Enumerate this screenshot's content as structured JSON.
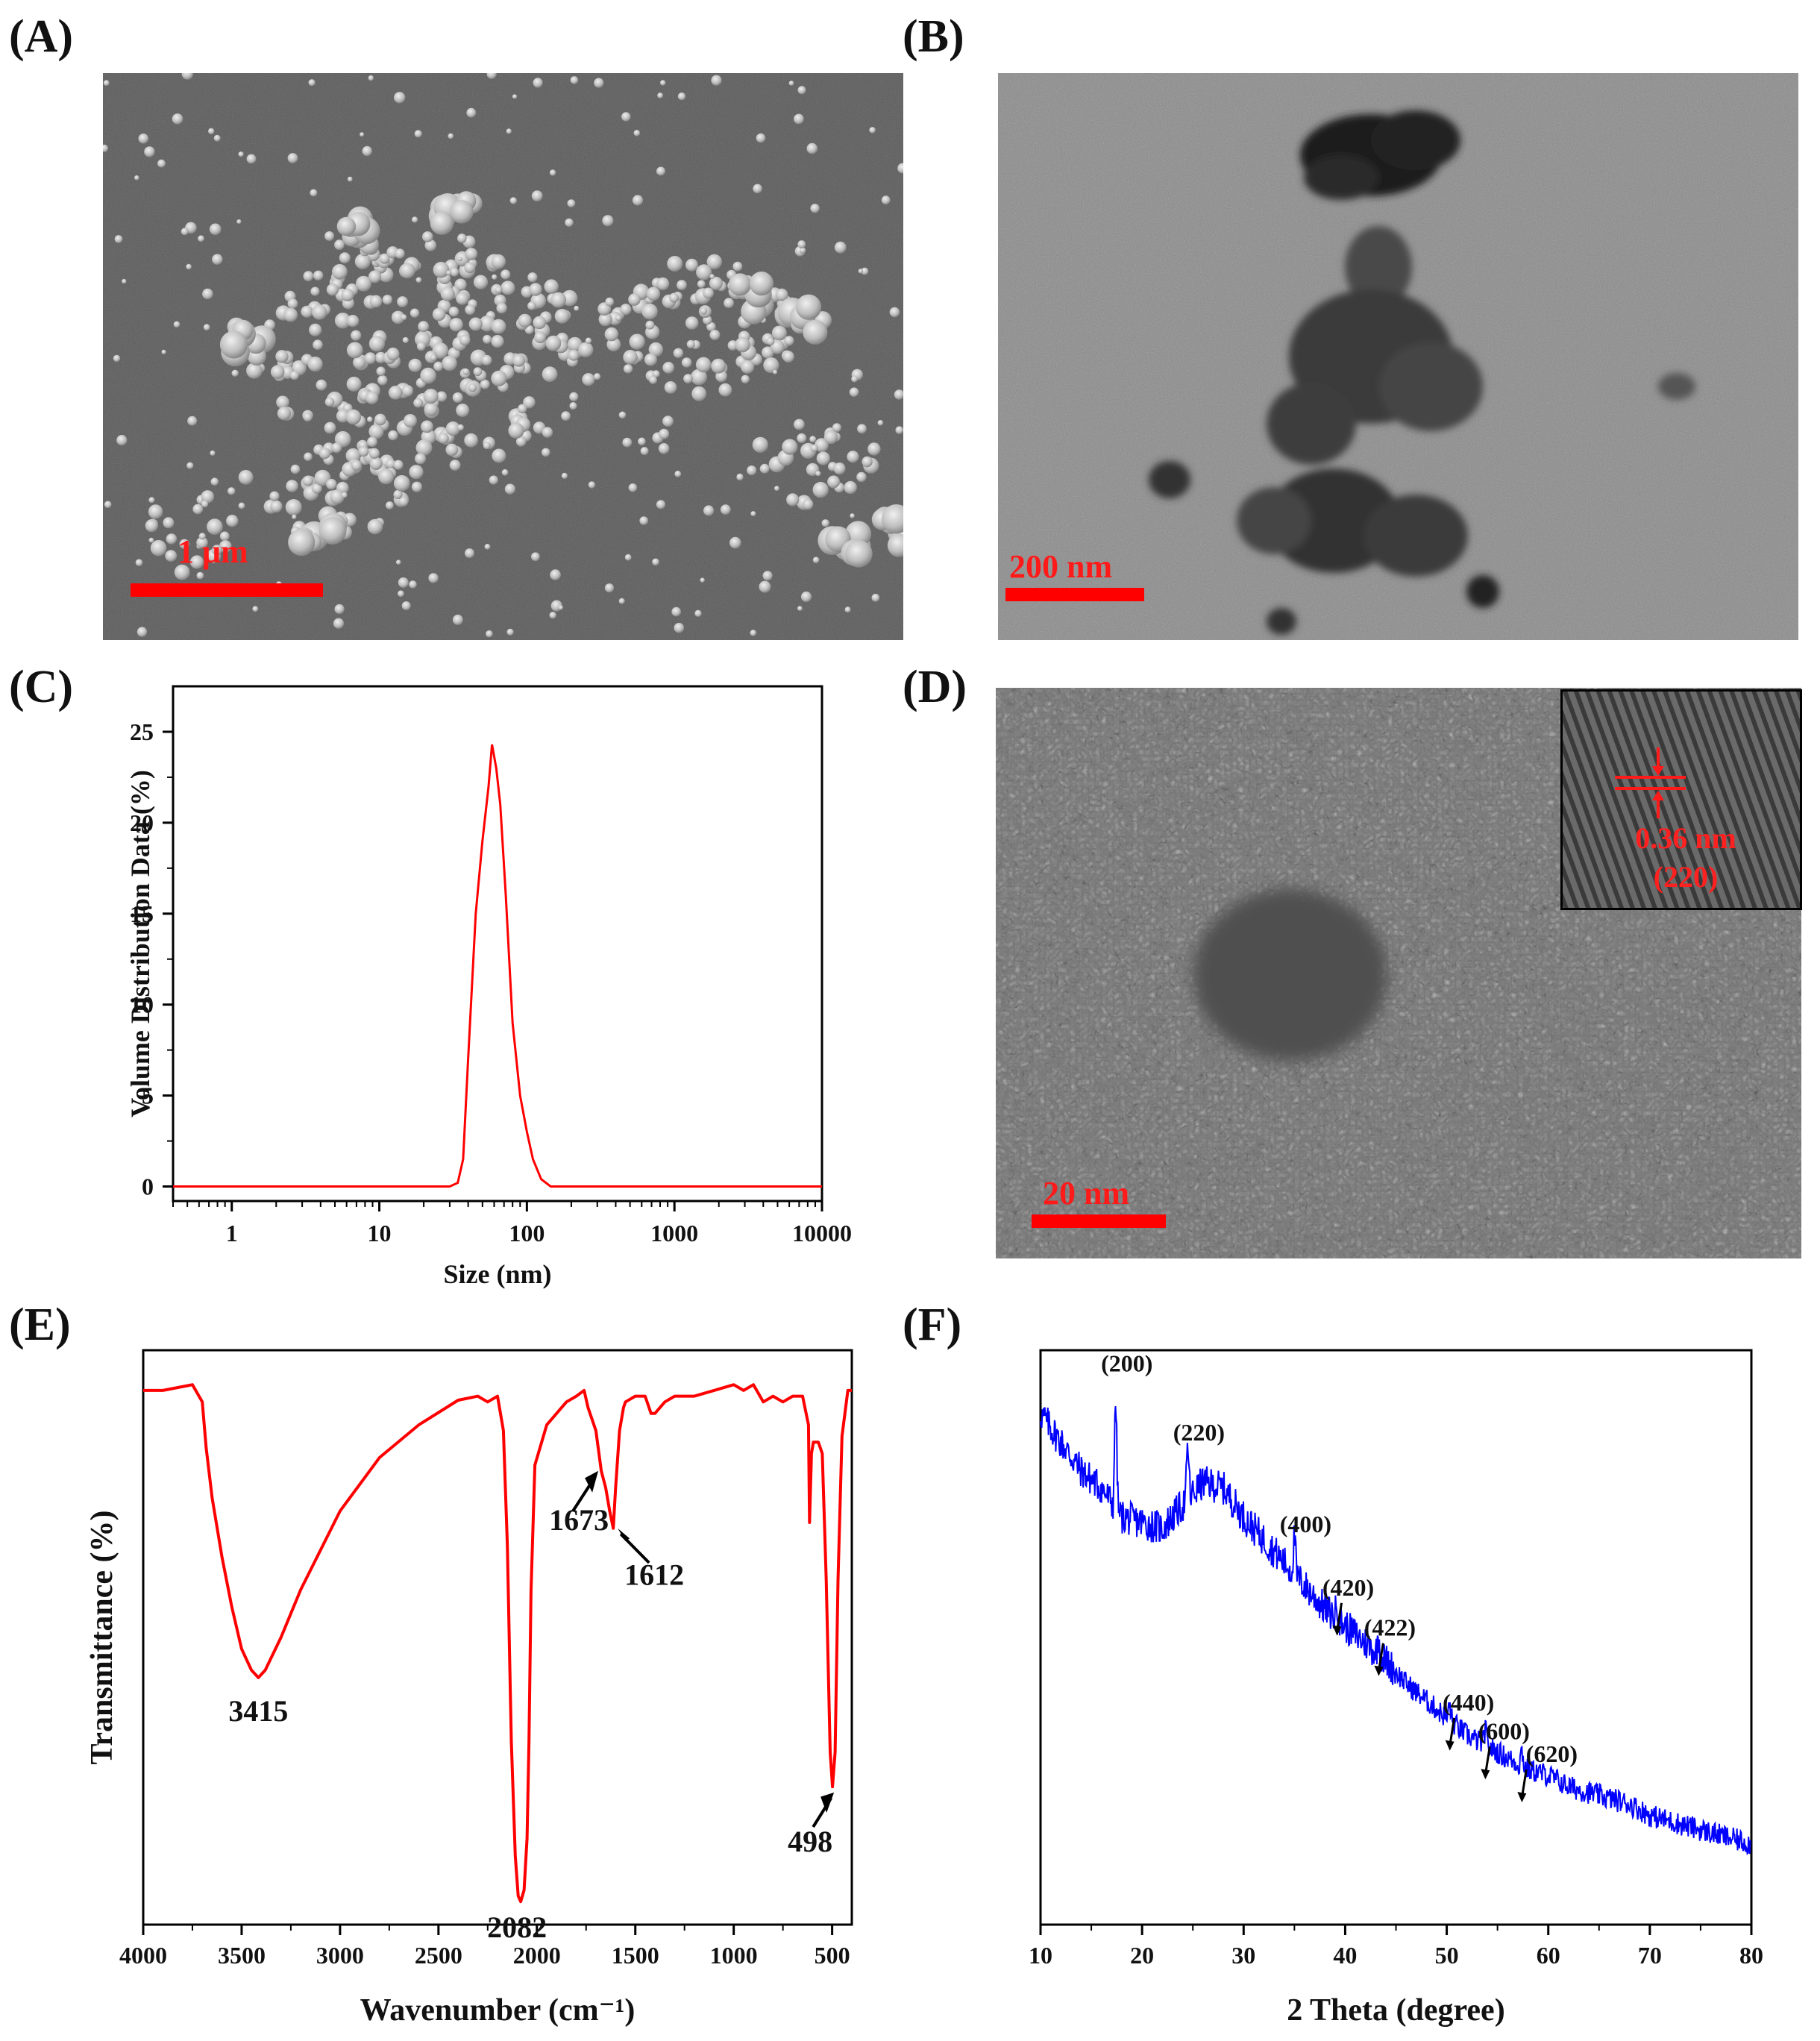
{
  "panels": {
    "A": {
      "label": "(A)",
      "scale_bar": "1 μm"
    },
    "B": {
      "label": "(B)",
      "scale_bar": "200 nm"
    },
    "C": {
      "label": "(C)"
    },
    "D": {
      "label": "(D)",
      "scale_bar": "20 nm",
      "inset_spacing": "0.36 nm",
      "inset_plane": "(220)"
    },
    "E": {
      "label": "(E)"
    },
    "F": {
      "label": "(F)"
    }
  },
  "colors": {
    "dls_line": "#ff0000",
    "ftir_line": "#ff0000",
    "xrd_line": "#0000ff",
    "scale": "#ff0000"
  },
  "chart_data": [
    {
      "id": "C",
      "type": "line",
      "xlabel": "Size (nm)",
      "ylabel": "Volume Distribution Data (%)",
      "x_scale": "log",
      "xlim": [
        0.4,
        10000
      ],
      "ylim": [
        -0.8,
        27.5
      ],
      "xticks": [
        1,
        10,
        100,
        1000,
        10000
      ],
      "xtick_labels": [
        "1",
        "10",
        "100",
        "1000",
        "10000"
      ],
      "yticks": [
        0,
        5,
        10,
        15,
        20,
        25
      ],
      "ytick_labels": [
        "0",
        "5",
        "10",
        "15",
        "20",
        "25"
      ],
      "series": [
        {
          "x": [
            0.4,
            30,
            34,
            37,
            40,
            45,
            50,
            55,
            58,
            62,
            66,
            72,
            80,
            90,
            100,
            110,
            125,
            145,
            200,
            10000
          ],
          "y": [
            0,
            0,
            0.2,
            1.5,
            7,
            15,
            19,
            22,
            24.3,
            23,
            21,
            16,
            9,
            5,
            3,
            1.5,
            0.4,
            0,
            0,
            0
          ]
        }
      ]
    },
    {
      "id": "E",
      "type": "line",
      "xlabel": "Wavenumber (cm⁻¹)",
      "ylabel": "Transmittance (%)",
      "x_reversed": true,
      "xlim": [
        4000,
        400
      ],
      "ylim": [
        0,
        100
      ],
      "xticks": [
        4000,
        3500,
        3000,
        2500,
        2000,
        1500,
        1000,
        500
      ],
      "xtick_labels": [
        "4000",
        "3500",
        "3000",
        "2500",
        "2000",
        "1500",
        "1000",
        "500"
      ],
      "annotations": [
        {
          "text": "3415",
          "x": 3415
        },
        {
          "text": "2082",
          "x": 2082
        },
        {
          "text": "1673",
          "x": 1673
        },
        {
          "text": "1612",
          "x": 1612
        },
        {
          "text": "498",
          "x": 498
        }
      ],
      "series": [
        {
          "x": [
            4000,
            3900,
            3750,
            3700,
            3680,
            3650,
            3600,
            3550,
            3500,
            3450,
            3415,
            3380,
            3300,
            3200,
            3000,
            2800,
            2600,
            2400,
            2300,
            2250,
            2200,
            2170,
            2150,
            2130,
            2110,
            2095,
            2082,
            2065,
            2050,
            2040,
            2030,
            2010,
            1950,
            1850,
            1800,
            1760,
            1740,
            1700,
            1673,
            1650,
            1630,
            1612,
            1600,
            1580,
            1560,
            1550,
            1500,
            1450,
            1420,
            1400,
            1350,
            1300,
            1200,
            1100,
            1000,
            950,
            900,
            850,
            800,
            750,
            700,
            650,
            620,
            615,
            605,
            595,
            570,
            550,
            530,
            510,
            498,
            485,
            470,
            450,
            420,
            400
          ],
          "y": [
            93,
            93,
            94,
            91,
            83,
            74,
            64,
            55,
            48,
            44,
            43,
            44,
            50,
            58,
            72,
            81,
            87,
            91,
            92,
            91,
            92,
            86,
            66,
            32,
            12,
            5,
            4,
            6,
            15,
            32,
            58,
            80,
            87,
            91,
            92,
            93,
            90,
            86,
            79,
            76,
            72,
            69,
            76,
            86,
            90,
            91,
            92,
            92,
            89,
            89,
            91,
            92,
            92,
            93,
            94,
            93,
            94,
            91,
            92,
            91,
            92,
            92,
            87,
            70,
            82,
            84,
            84,
            82,
            60,
            30,
            24,
            30,
            60,
            85,
            93,
            93
          ]
        }
      ]
    },
    {
      "id": "F",
      "type": "line",
      "xlabel": "2 Theta (degree)",
      "xlim": [
        10,
        80
      ],
      "ylim": [
        0,
        100
      ],
      "xticks": [
        10,
        20,
        30,
        40,
        50,
        60,
        70,
        80
      ],
      "xtick_labels": [
        "10",
        "20",
        "30",
        "40",
        "50",
        "60",
        "70",
        "80"
      ],
      "peaks": [
        {
          "label": "(200)",
          "x": 17.4,
          "y": 95
        },
        {
          "label": "(220)",
          "x": 24.5,
          "y": 83
        },
        {
          "label": "(400)",
          "x": 35.0,
          "y": 67
        },
        {
          "label": "(420)",
          "x": 39.2,
          "y": 56
        },
        {
          "label": "(422)",
          "x": 43.3,
          "y": 49
        },
        {
          "label": "(440)",
          "x": 50.3,
          "y": 36
        },
        {
          "label": "(600)",
          "x": 53.8,
          "y": 31
        },
        {
          "label": "(620)",
          "x": 57.4,
          "y": 27
        }
      ],
      "series": [
        {
          "x": [
            10,
            12,
            14,
            16,
            18,
            20,
            22,
            24,
            26,
            28,
            30,
            32,
            34,
            36,
            38,
            40,
            42,
            44,
            46,
            48,
            50,
            52,
            54,
            56,
            58,
            60,
            62,
            64,
            66,
            68,
            70,
            72,
            74,
            76,
            78,
            80
          ],
          "y": [
            89,
            84,
            79,
            76,
            71,
            70,
            69,
            73,
            77,
            76,
            71,
            67,
            63,
            59,
            55,
            52,
            49,
            46,
            42,
            39,
            36,
            33,
            31,
            29,
            27,
            26,
            24,
            23,
            22,
            21,
            19,
            18,
            17,
            16,
            15,
            14
          ]
        }
      ]
    }
  ]
}
